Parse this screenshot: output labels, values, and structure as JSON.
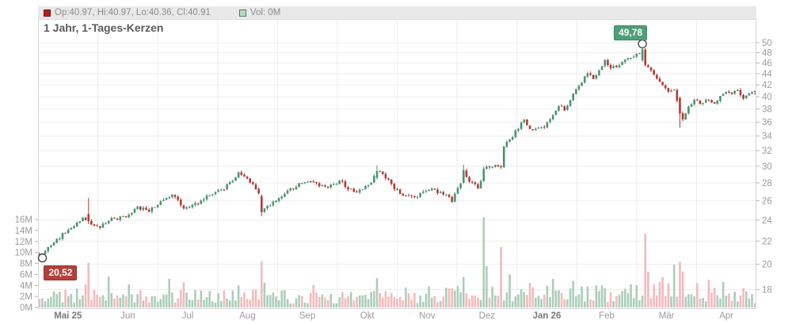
{
  "chart_data": {
    "type": "candlestick",
    "title": "1 Jahr, 1-Tages-Kerzen",
    "legend": {
      "ohlc": "Op:40.97, Hi:40.97, Lo:40.36, Cl:40.91",
      "volume": "Vol: 0M"
    },
    "x_labels": [
      {
        "label": "Mai 25",
        "bold": true
      },
      {
        "label": "Jun",
        "bold": false
      },
      {
        "label": "Jul",
        "bold": false
      },
      {
        "label": "Aug",
        "bold": false
      },
      {
        "label": "Sep",
        "bold": false
      },
      {
        "label": "Okt",
        "bold": false
      },
      {
        "label": "Nov",
        "bold": false
      },
      {
        "label": "Dez",
        "bold": false
      },
      {
        "label": "Jan 26",
        "bold": true
      },
      {
        "label": "Feb",
        "bold": false
      },
      {
        "label": "Mär",
        "bold": false
      },
      {
        "label": "Apr",
        "bold": false
      }
    ],
    "price_ticks": [
      18,
      20,
      22,
      24,
      26,
      28,
      30,
      32,
      34,
      36,
      38,
      40,
      42,
      44,
      46,
      48,
      50
    ],
    "price_scale": "log",
    "price_range": [
      16.67,
      58.15
    ],
    "volume_ticks": [
      {
        "value": 16,
        "label": "16M"
      },
      {
        "value": 14,
        "label": "14M"
      },
      {
        "value": 12,
        "label": "12M"
      },
      {
        "value": 10,
        "label": "10M"
      },
      {
        "value": 8,
        "label": "8M"
      },
      {
        "value": 6,
        "label": "6M"
      },
      {
        "value": 4,
        "label": "4M"
      },
      {
        "value": 2,
        "label": "2M"
      },
      {
        "value": 0,
        "label": "0M"
      }
    ],
    "volume_axis_max": 16,
    "num_candles": 249,
    "seed": 11,
    "close_anchors": [
      [
        0,
        20.7
      ],
      [
        3,
        21.4
      ],
      [
        8,
        22.6
      ],
      [
        12,
        23.4
      ],
      [
        15,
        24.3
      ],
      [
        17,
        23.9
      ],
      [
        19,
        23.5
      ],
      [
        21,
        23.3
      ],
      [
        25,
        24.1
      ],
      [
        30,
        24.3
      ],
      [
        34,
        25.3
      ],
      [
        38,
        25.0
      ],
      [
        42,
        25.9
      ],
      [
        46,
        26.5
      ],
      [
        48,
        26.2
      ],
      [
        50,
        25.2
      ],
      [
        53,
        25.4
      ],
      [
        57,
        26.3
      ],
      [
        60,
        26.6
      ],
      [
        64,
        27.4
      ],
      [
        68,
        28.6
      ],
      [
        69,
        29.2
      ],
      [
        71,
        28.6
      ],
      [
        74,
        27.9
      ],
      [
        76,
        26.8
      ],
      [
        77,
        24.8
      ],
      [
        78,
        25.1
      ],
      [
        81,
        25.8
      ],
      [
        85,
        26.8
      ],
      [
        89,
        27.6
      ],
      [
        93,
        28.3
      ],
      [
        96,
        27.8
      ],
      [
        100,
        27.4
      ],
      [
        104,
        28.3
      ],
      [
        107,
        27.4
      ],
      [
        110,
        27.0
      ],
      [
        114,
        27.6
      ],
      [
        117,
        29.4
      ],
      [
        119,
        29.0
      ],
      [
        123,
        27.4
      ],
      [
        126,
        26.6
      ],
      [
        130,
        26.4
      ],
      [
        133,
        26.9
      ],
      [
        136,
        27.2
      ],
      [
        140,
        26.8
      ],
      [
        143,
        26.0
      ],
      [
        146,
        28.0
      ],
      [
        147,
        29.5
      ],
      [
        149,
        28.3
      ],
      [
        152,
        27.4
      ],
      [
        153,
        28.2
      ],
      [
        154,
        29.7
      ],
      [
        158,
        30.0
      ],
      [
        160,
        29.9
      ],
      [
        161,
        32.6
      ],
      [
        163,
        33.4
      ],
      [
        166,
        35.2
      ],
      [
        168,
        36.3
      ],
      [
        170,
        35.1
      ],
      [
        172,
        34.8
      ],
      [
        175,
        35.3
      ],
      [
        178,
        37.2
      ],
      [
        180,
        38.5
      ],
      [
        182,
        38.0
      ],
      [
        185,
        40.3
      ],
      [
        188,
        42.5
      ],
      [
        190,
        44.3
      ],
      [
        192,
        43.3
      ],
      [
        194,
        44.6
      ],
      [
        196,
        46.3
      ],
      [
        198,
        44.9
      ],
      [
        200,
        45.3
      ],
      [
        203,
        46.9
      ],
      [
        206,
        47.2
      ],
      [
        209,
        48.7
      ],
      [
        210,
        45.6
      ],
      [
        212,
        44.6
      ],
      [
        214,
        43.3
      ],
      [
        216,
        42.2
      ],
      [
        218,
        41.0
      ],
      [
        220,
        41.2
      ],
      [
        222,
        37.3
      ],
      [
        223,
        36.3
      ],
      [
        225,
        38.2
      ],
      [
        227,
        39.4
      ],
      [
        229,
        39.0
      ],
      [
        232,
        39.7
      ],
      [
        234,
        38.9
      ],
      [
        236,
        40.2
      ],
      [
        238,
        40.9
      ],
      [
        240,
        40.4
      ],
      [
        242,
        41.0
      ],
      [
        244,
        39.9
      ],
      [
        246,
        40.6
      ],
      [
        248,
        40.91
      ]
    ],
    "explicit_candles": [
      {
        "i": 0,
        "o": 20.85,
        "h": 21.0,
        "l": 20.6,
        "c": 20.7
      },
      {
        "i": 1,
        "o": 20.7,
        "h": 20.95,
        "l": 20.52,
        "c": 20.9
      },
      {
        "i": 17,
        "o": 24.6,
        "h": 26.3,
        "l": 23.6,
        "c": 23.9
      },
      {
        "i": 77,
        "o": 26.5,
        "h": 26.7,
        "l": 24.4,
        "c": 24.8
      },
      {
        "i": 117,
        "o": 28.6,
        "h": 30.1,
        "l": 28.4,
        "c": 29.4
      },
      {
        "i": 147,
        "o": 28.0,
        "h": 30.2,
        "l": 27.9,
        "c": 29.5
      },
      {
        "i": 154,
        "o": 28.2,
        "h": 30.0,
        "l": 28.1,
        "c": 29.7
      },
      {
        "i": 209,
        "o": 46.5,
        "h": 49.78,
        "l": 46.2,
        "c": 48.7
      },
      {
        "i": 210,
        "o": 48.6,
        "h": 48.9,
        "l": 45.3,
        "c": 45.6
      },
      {
        "i": 222,
        "o": 39.8,
        "h": 40.0,
        "l": 35.2,
        "c": 37.3
      },
      {
        "i": 248,
        "o": 40.97,
        "h": 40.97,
        "l": 40.36,
        "c": 40.91
      }
    ],
    "volume_base_anchors": [
      [
        0,
        2.4
      ],
      [
        20,
        2.0
      ],
      [
        40,
        2.0
      ],
      [
        70,
        2.2
      ],
      [
        100,
        1.8
      ],
      [
        130,
        1.9
      ],
      [
        150,
        2.6
      ],
      [
        170,
        2.8
      ],
      [
        190,
        2.6
      ],
      [
        215,
        3.0
      ],
      [
        235,
        2.2
      ],
      [
        248,
        1.8
      ]
    ],
    "volume_spikes": [
      [
        16,
        4.2
      ],
      [
        17,
        8.1
      ],
      [
        24,
        5.6
      ],
      [
        31,
        4.2
      ],
      [
        45,
        5.2
      ],
      [
        50,
        4.6
      ],
      [
        69,
        4.0
      ],
      [
        77,
        8.4
      ],
      [
        78,
        4.5
      ],
      [
        95,
        4.1
      ],
      [
        117,
        5.3
      ],
      [
        127,
        3.6
      ],
      [
        135,
        3.8
      ],
      [
        147,
        5.5
      ],
      [
        154,
        16.4
      ],
      [
        155,
        7.5
      ],
      [
        160,
        11.0
      ],
      [
        163,
        6.0
      ],
      [
        170,
        4.5
      ],
      [
        178,
        5.2
      ],
      [
        185,
        4.8
      ],
      [
        195,
        4.0
      ],
      [
        205,
        4.2
      ],
      [
        210,
        13.4
      ],
      [
        211,
        6.5
      ],
      [
        216,
        5.5
      ],
      [
        220,
        7.8
      ],
      [
        222,
        8.3
      ],
      [
        223,
        6.5
      ],
      [
        228,
        4.4
      ],
      [
        232,
        5.0
      ],
      [
        237,
        4.6
      ],
      [
        244,
        3.5
      ]
    ],
    "markers": [
      {
        "name": "low",
        "label": "20,52",
        "price": 20.52,
        "candle_index": 1,
        "point": "low",
        "side": "below",
        "badge_color": "#b4403a",
        "badge_border": "#96312e"
      },
      {
        "name": "high",
        "label": "49,78",
        "price": 49.78,
        "candle_index": 209,
        "point": "high",
        "side": "above",
        "badge_color": "#4f9e78",
        "badge_border": "#3f8563"
      }
    ],
    "colors": {
      "up": "#4b9370",
      "down": "#b13a34",
      "vol_up": "#abceb9",
      "vol_down": "#f3babd",
      "grid": "#ededed",
      "plot_border": "#d4d4d4",
      "axis_text": "#9b9b9b",
      "axis_text_bold": "#7a7a7a",
      "tick": "#b5b5b5",
      "legend_bg": "#e9e9e9",
      "legend_text": "#8b8b8b",
      "legend_red_swatch": "#b51d1d",
      "legend_green_swatch": "#b9d8c5",
      "title_text": "#5c5c5c",
      "marker_ring": "#444444",
      "badge_low_bg": "#b4403a",
      "badge_high_bg": "#4f9e78"
    }
  }
}
